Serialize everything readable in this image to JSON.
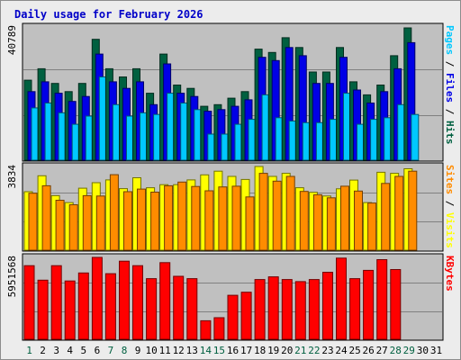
{
  "chart_data": {
    "type": "bar",
    "title": "Daily usage for February 2026",
    "days": [
      "1",
      "2",
      "3",
      "4",
      "5",
      "6",
      "7",
      "8",
      "9",
      "10",
      "11",
      "12",
      "13",
      "14",
      "15",
      "16",
      "17",
      "18",
      "19",
      "20",
      "21",
      "22",
      "23",
      "24",
      "25",
      "26",
      "27",
      "28",
      "29",
      "30",
      "31"
    ],
    "weekend_days": [
      "1",
      "7",
      "8",
      "14",
      "15",
      "21",
      "22",
      "28",
      "29"
    ],
    "colors": {
      "hits": "#006040",
      "files": "#0000e6",
      "pages": "#00c8ff",
      "visits": "#ffff00",
      "sites": "#ff8c00",
      "kbytes": "#ff0000",
      "weekday_label": "#000000",
      "weekend_label": "#006040"
    },
    "panels": [
      {
        "id": "hits",
        "ymax_label": "40789",
        "ymax": 40789,
        "side_label": [
          {
            "text": "Pages",
            "color": "#00c8ff"
          },
          {
            "text": " / ",
            "color": "#000000"
          },
          {
            "text": "Files",
            "color": "#0000e6"
          },
          {
            "text": " / ",
            "color": "#000000"
          },
          {
            "text": "Hits",
            "color": "#006040"
          }
        ],
        "series": [
          {
            "name": "Hits",
            "color": "#006040",
            "values": [
              24500,
              28000,
              23500,
              21000,
              23500,
              37000,
              28000,
              25500,
              28000,
              20500,
              32500,
              23000,
              22000,
              16500,
              17000,
              19000,
              21000,
              34000,
              33000,
              37500,
              34500,
              27000,
              27000,
              34500,
              24000,
              20000,
              23000,
              32000,
              40500,
              null,
              null
            ]
          },
          {
            "name": "Files",
            "color": "#0000e6",
            "values": [
              21000,
              24000,
              20500,
              18000,
              19500,
              32500,
              24000,
              22000,
              24000,
              17000,
              29500,
              20500,
              19500,
              15000,
              15500,
              16500,
              18500,
              31500,
              30500,
              34500,
              32000,
              23500,
              23500,
              31500,
              21500,
              17500,
              21000,
              28000,
              36000,
              null,
              null
            ]
          },
          {
            "name": "Pages",
            "color": "#00c8ff",
            "values": [
              16000,
              17500,
              14500,
              11000,
              13500,
              25500,
              17000,
              13500,
              14500,
              14000,
              20500,
              17500,
              15500,
              8000,
              8000,
              11000,
              12500,
              20000,
              13000,
              12000,
              11500,
              11500,
              12500,
              20500,
              11000,
              12500,
              13000,
              17000,
              14000,
              null,
              null
            ]
          }
        ]
      },
      {
        "id": "visits",
        "ymax_label": "3834",
        "ymax": 3834,
        "side_label": [
          {
            "text": "Sites",
            "color": "#ff8c00"
          },
          {
            "text": " / ",
            "color": "#000000"
          },
          {
            "text": "Visits",
            "color": "#ffff00"
          }
        ],
        "series": [
          {
            "name": "Visits",
            "color": "#ffff00",
            "values": [
              2680,
              3410,
              2500,
              2180,
              2840,
              3090,
              3220,
              2820,
              3320,
              2860,
              3000,
              3000,
              3220,
              3450,
              3620,
              3380,
              3240,
              3834,
              3380,
              3520,
              2860,
              2650,
              2480,
              2810,
              3210,
              2180,
              3570,
              3520,
              3730,
              null,
              null
            ]
          },
          {
            "name": "Sites",
            "color": "#ff8c00",
            "values": [
              2610,
              2950,
              2290,
              2080,
              2500,
              2480,
              3460,
              2680,
              2800,
              2660,
              2950,
              3120,
              2920,
              2720,
              2900,
              2930,
              2440,
              3520,
              3160,
              3380,
              2690,
              2540,
              2400,
              2930,
              2710,
              2160,
              3060,
              3380,
              3620,
              null,
              null
            ]
          }
        ]
      },
      {
        "id": "kbytes",
        "ymax_label": "5951568",
        "ymax": 5951568,
        "side_label": [
          {
            "text": "KBytes",
            "color": "#ff0000"
          }
        ],
        "series": [
          {
            "name": "KBytes",
            "color": "#ff0000",
            "values": [
              5350000,
              4300000,
              5350000,
              4240000,
              4820000,
              6150000,
              4770000,
              5680000,
              5350000,
              4410000,
              5570000,
              4580000,
              4410000,
              1350000,
              1570000,
              3200000,
              3420000,
              4340000,
              4540000,
              4340000,
              4190000,
              4340000,
              4870000,
              5900000,
              4410000,
              5010000,
              5790000,
              5070000,
              null,
              null,
              null
            ]
          }
        ]
      }
    ]
  }
}
